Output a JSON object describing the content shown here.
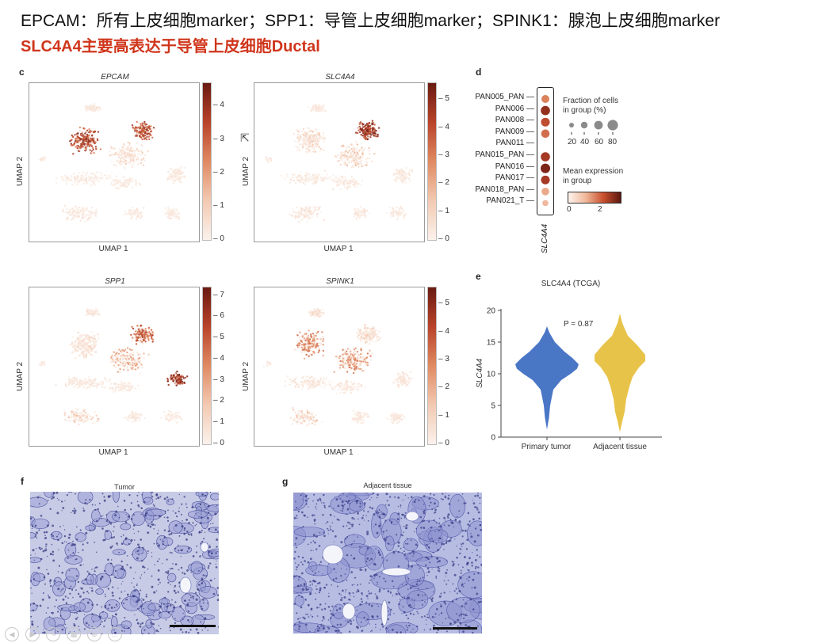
{
  "header": {
    "line1": "EPCAM：所有上皮细胞marker；SPP1：导管上皮细胞marker；SPINK1：腺泡上皮细胞marker",
    "line2": "SLC4A4主要高表达于导管上皮细胞Ductal"
  },
  "panels": {
    "c": "c",
    "d": "d",
    "e": "e",
    "f": "f",
    "g": "g"
  },
  "umaps": [
    {
      "title": "EPCAM",
      "xlabel": "UMAP 1",
      "ylabel": "UMAP 2",
      "ticks": [
        "4",
        "3",
        "2",
        "1",
        "0"
      ],
      "max": 4.7
    },
    {
      "title": "SLC4A4",
      "xlabel": "UMAP 1",
      "ylabel": "UMAP 2",
      "ticks": [
        "5",
        "4",
        "3",
        "2",
        "1",
        "0"
      ],
      "max": 5.6
    },
    {
      "title": "SPP1",
      "xlabel": "UMAP 1",
      "ylabel": "UMAP 2",
      "ticks": [
        "7",
        "6",
        "5",
        "4",
        "3",
        "2",
        "1",
        "0"
      ],
      "max": 7.4
    },
    {
      "title": "SPINK1",
      "xlabel": "UMAP 1",
      "ylabel": "UMAP 2",
      "ticks": [
        "5",
        "4",
        "3",
        "2",
        "1",
        "0"
      ],
      "max": 5.6
    }
  ],
  "dotplot": {
    "gene": "SLC4A4",
    "groups": [
      "PAN005_PAN",
      "PAN006",
      "PAN008",
      "PAN009",
      "PAN011",
      "PAN015_PAN",
      "PAN016",
      "PAN017",
      "PAN018_PAN",
      "PAN021_T"
    ],
    "fraction_pct": [
      60,
      75,
      70,
      65,
      0,
      75,
      80,
      70,
      55,
      35
    ],
    "mean_expr": [
      1.7,
      2.8,
      2.3,
      1.9,
      0,
      2.6,
      3.0,
      2.6,
      1.2,
      1.0
    ],
    "fraction_legend_title": [
      "Fraction of cells",
      "in group (%)"
    ],
    "fraction_ticks": [
      "20",
      "40",
      "60",
      "80"
    ],
    "expr_legend_title": [
      "Mean expression",
      "in group"
    ],
    "expr_ticks": [
      "0",
      "2"
    ]
  },
  "violin": {
    "title": "SLC4A4 (TCGA)",
    "ylabel": "SLC4A4",
    "pvalue": "P = 0.87",
    "yticks": [
      "20",
      "15",
      "10",
      "5",
      "0"
    ],
    "groups": [
      "Primary tumor",
      "Adjacent tissue"
    ],
    "colors": [
      "#4a76c6",
      "#e8c349"
    ]
  },
  "histology": {
    "tumor_title": "Tumor",
    "adjacent_title": "Adjacent tissue"
  },
  "chart_data": [
    {
      "type": "scatter",
      "title": "EPCAM",
      "xlabel": "UMAP 1",
      "ylabel": "UMAP 2",
      "colorbar_range": [
        0,
        4.7
      ]
    },
    {
      "type": "scatter",
      "title": "SLC4A4",
      "xlabel": "UMAP 1",
      "ylabel": "UMAP 2",
      "colorbar_range": [
        0,
        5.6
      ]
    },
    {
      "type": "scatter",
      "title": "SPP1",
      "xlabel": "UMAP 1",
      "ylabel": "UMAP 2",
      "colorbar_range": [
        0,
        7.4
      ]
    },
    {
      "type": "scatter",
      "title": "SPINK1",
      "xlabel": "UMAP 1",
      "ylabel": "UMAP 2",
      "colorbar_range": [
        0,
        5.6
      ]
    },
    {
      "type": "scatter",
      "title": "",
      "x": [
        "SLC4A4"
      ],
      "categories": [
        "PAN005_PAN",
        "PAN006",
        "PAN008",
        "PAN009",
        "PAN011",
        "PAN015_PAN",
        "PAN016",
        "PAN017",
        "PAN018_PAN",
        "PAN021_T"
      ],
      "fraction_pct": [
        60,
        75,
        70,
        65,
        0,
        75,
        80,
        70,
        55,
        35
      ],
      "mean_expression": [
        1.7,
        2.8,
        2.3,
        1.9,
        0,
        2.6,
        3.0,
        2.6,
        1.2,
        1.0
      ]
    },
    {
      "type": "area",
      "title": "SLC4A4 (TCGA)",
      "ylabel": "SLC4A4",
      "categories": [
        "Primary tumor",
        "Adjacent tissue"
      ],
      "ylim": [
        0,
        20
      ],
      "annotation": "P = 0.87",
      "series": [
        {
          "name": "Primary tumor",
          "range": [
            1,
            17.5
          ],
          "median": 11
        },
        {
          "name": "Adjacent tissue",
          "range": [
            1,
            19.5
          ],
          "median": 12
        }
      ]
    }
  ]
}
